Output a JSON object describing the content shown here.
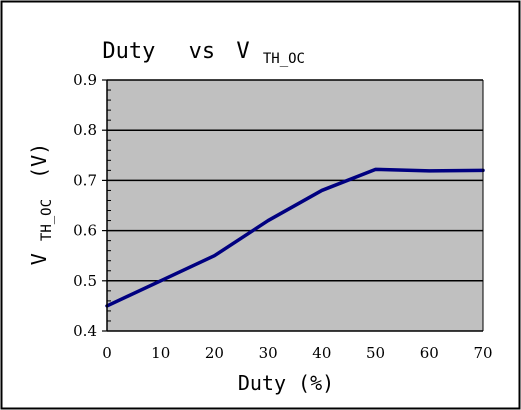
{
  "chart_data": {
    "type": "line",
    "title": {
      "main": "Duty",
      "mid": "vs",
      "var": "V",
      "sub": "TH_OC"
    },
    "xlabel": "Duty (%)",
    "ylabel": {
      "var": "V",
      "sub": "TH_OC",
      "unit": "(V)"
    },
    "xlim": [
      0,
      70
    ],
    "ylim": [
      0.4,
      0.9
    ],
    "xticks": [
      0,
      10,
      20,
      30,
      40,
      50,
      60,
      70
    ],
    "yticks": [
      0.4,
      0.5,
      0.6,
      0.7,
      0.8,
      0.9
    ],
    "xtick_labels": [
      "0",
      "10",
      "20",
      "30",
      "40",
      "50",
      "60",
      "70"
    ],
    "ytick_labels": [
      "0.4",
      "0.5",
      "0.6",
      "0.7",
      "0.8",
      "0.9"
    ],
    "grid": "horizontal",
    "series": [
      {
        "x": [
          0,
          10,
          20,
          30,
          40,
          50,
          60,
          70
        ],
        "y": [
          0.45,
          0.5,
          0.55,
          0.62,
          0.68,
          0.722,
          0.719,
          0.72
        ]
      }
    ],
    "colors": {
      "plot_background": "#c0c0c0",
      "line": "#000080",
      "grid": "#000000",
      "frame": "#000000"
    }
  }
}
